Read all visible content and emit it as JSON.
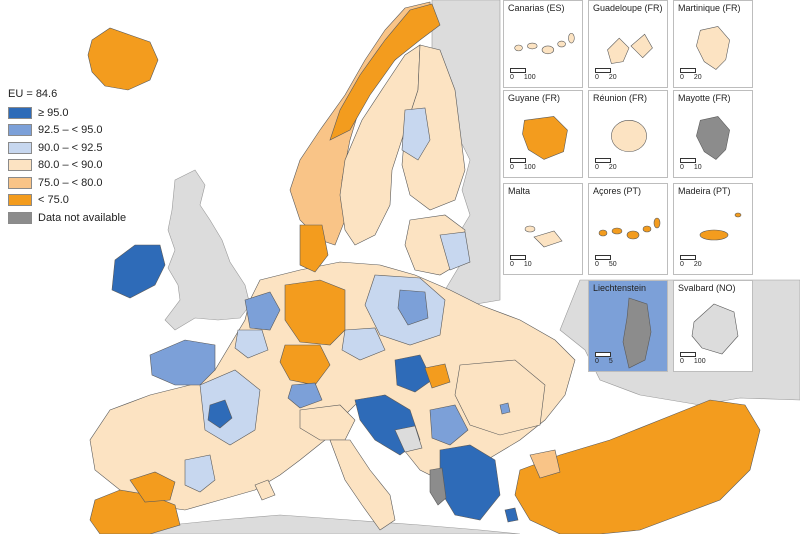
{
  "legend": {
    "title": "EU = 84.6",
    "items": [
      {
        "label": "≥ 95.0",
        "color": "#2e6bb8"
      },
      {
        "label": "92.5 – < 95.0",
        "color": "#7ca0d8"
      },
      {
        "label": "90.0 – < 92.5",
        "color": "#c7d7ef"
      },
      {
        "label": "80.0 – < 90.0",
        "color": "#fce3c2"
      },
      {
        "label": "75.0 – < 80.0",
        "color": "#f9c487"
      },
      {
        "label": "< 75.0",
        "color": "#f39c1e"
      },
      {
        "label": "Data not available",
        "color": "#8c8c8c"
      }
    ]
  },
  "colors": {
    "sea": "#ffffff",
    "non_eu": "#dcdcdc",
    "border": "#5a5a5a"
  },
  "insets": [
    {
      "name": "inset-canarias",
      "label": "Canarias (ES)",
      "scale": [
        "0",
        "100"
      ],
      "fill": "#fce3c2",
      "shape": "islands-row"
    },
    {
      "name": "inset-guadeloupe",
      "label": "Guadeloupe (FR)",
      "scale": [
        "0",
        "20"
      ],
      "fill": "#fce3c2",
      "shape": "butterfly"
    },
    {
      "name": "inset-martinique",
      "label": "Martinique (FR)",
      "scale": [
        "0",
        "20"
      ],
      "fill": "#fce3c2",
      "shape": "island"
    },
    {
      "name": "inset-guyane",
      "label": "Guyane (FR)",
      "scale": [
        "0",
        "100"
      ],
      "fill": "#f39c1e",
      "shape": "guyane"
    },
    {
      "name": "inset-reunion",
      "label": "Réunion (FR)",
      "scale": [
        "0",
        "20"
      ],
      "fill": "#fce3c2",
      "shape": "round"
    },
    {
      "name": "inset-mayotte",
      "label": "Mayotte (FR)",
      "scale": [
        "0",
        "10"
      ],
      "fill": "#8c8c8c",
      "shape": "island"
    },
    {
      "name": "inset-malta",
      "label": "Malta",
      "scale": [
        "0",
        "10"
      ],
      "fill": "#fce3c2",
      "shape": "malta"
    },
    {
      "name": "inset-acores",
      "label": "Açores (PT)",
      "scale": [
        "0",
        "50"
      ],
      "fill": "#f39c1e",
      "shape": "islands-row"
    },
    {
      "name": "inset-madeira",
      "label": "Madeira (PT)",
      "scale": [
        "0",
        "20"
      ],
      "fill": "#f39c1e",
      "shape": "madeira"
    },
    {
      "name": "inset-liechtenstein",
      "label": "Liechtenstein",
      "scale": [
        "0",
        "5"
      ],
      "fill": "#8c8c8c",
      "shape": "liechtenstein"
    },
    {
      "name": "inset-svalbard",
      "label": "Svalbard (NO)",
      "scale": [
        "0",
        "100"
      ],
      "fill": "#dcdcdc",
      "shape": "svalbard"
    }
  ]
}
